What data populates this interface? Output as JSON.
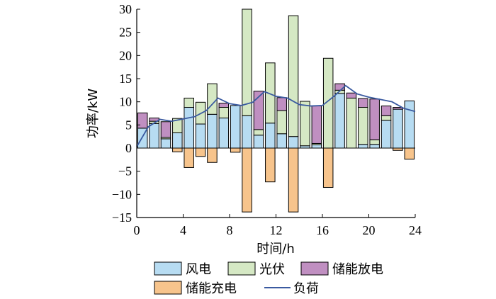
{
  "chart_data": {
    "type": "bar",
    "xlabel": "时间/h",
    "ylabel": "功率/kW",
    "xlim": [
      0,
      24
    ],
    "ylim": [
      -15,
      30
    ],
    "xticks": [
      "0",
      "4",
      "8",
      "12",
      "16",
      "20",
      "24"
    ],
    "yticks": [
      "−15",
      "−10",
      "−5",
      "0",
      "5",
      "10",
      "15",
      "20",
      "25",
      "30"
    ],
    "legend_placement": "bottom",
    "hours": [
      1,
      2,
      3,
      4,
      5,
      6,
      7,
      8,
      9,
      10,
      11,
      12,
      13,
      14,
      15,
      16,
      17,
      18,
      19,
      20,
      21,
      22,
      23,
      24
    ],
    "series": [
      {
        "name": "风电",
        "color": "#b7dcf2",
        "kind": "stacked-bar",
        "values": [
          4.3,
          5.3,
          2.0,
          3.3,
          8.8,
          5.2,
          7.3,
          6.5,
          9.2,
          7.0,
          2.8,
          5.4,
          3.1,
          2.5,
          0.5,
          0.7,
          0,
          11.8,
          0,
          0.8,
          0.8,
          6.0,
          8.4,
          10.2
        ]
      },
      {
        "name": "光伏",
        "color": "#d5e8c4",
        "kind": "stacked-bar",
        "values": [
          0,
          0.5,
          0.3,
          3.1,
          2.0,
          4.7,
          6.6,
          2.3,
          0,
          23.0,
          1.2,
          13.0,
          5.0,
          26.1,
          9.6,
          0.3,
          19.4,
          0.7,
          10.8,
          8.0,
          1.0,
          1.0,
          0,
          0
        ]
      },
      {
        "name": "储能放电",
        "color": "#c08fc1",
        "kind": "stacked-bar",
        "values": [
          3.3,
          0.7,
          3.4,
          0,
          0,
          0,
          0,
          0.9,
          0,
          0,
          8.3,
          0,
          2.8,
          0,
          0,
          8.1,
          0,
          1.4,
          1.1,
          1.9,
          8.8,
          2.1,
          0.4,
          0
        ]
      },
      {
        "name": "储能充电",
        "color": "#f7c48c",
        "kind": "negative-bar",
        "values": [
          0,
          0,
          0,
          -0.8,
          -4.2,
          -1.8,
          -3.1,
          0,
          -0.9,
          -13.8,
          0,
          -7.3,
          0,
          -13.8,
          0,
          0,
          -8.5,
          0,
          0,
          0,
          0,
          0,
          -0.5,
          -2.4
        ]
      },
      {
        "name": "负荷",
        "color": "#3a5aa0",
        "kind": "line",
        "x": [
          0,
          1,
          2,
          3,
          4,
          5,
          6,
          7,
          8,
          9,
          10,
          11,
          12,
          13,
          14,
          15,
          16,
          17,
          18,
          19,
          20,
          21,
          22,
          23,
          24
        ],
        "values": [
          0.3,
          4.6,
          6.2,
          5.8,
          6.3,
          6.8,
          8.1,
          10.8,
          9.6,
          9.2,
          9.9,
          12.2,
          11.2,
          10.8,
          9.4,
          9.1,
          9.2,
          11.2,
          13.5,
          11.7,
          11.0,
          10.5,
          10.0,
          8.6,
          7.9
        ]
      }
    ]
  }
}
